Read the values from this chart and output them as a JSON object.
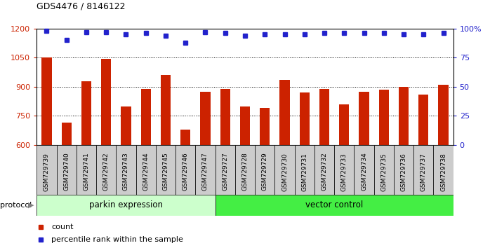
{
  "title": "GDS4476 / 8146122",
  "samples": [
    "GSM729739",
    "GSM729740",
    "GSM729741",
    "GSM729742",
    "GSM729743",
    "GSM729744",
    "GSM729745",
    "GSM729746",
    "GSM729747",
    "GSM729727",
    "GSM729728",
    "GSM729729",
    "GSM729730",
    "GSM729731",
    "GSM729732",
    "GSM729733",
    "GSM729734",
    "GSM729735",
    "GSM729736",
    "GSM729737",
    "GSM729738"
  ],
  "counts": [
    1050,
    715,
    930,
    1045,
    800,
    890,
    960,
    680,
    875,
    890,
    800,
    790,
    935,
    870,
    890,
    810,
    875,
    885,
    900,
    860,
    910
  ],
  "percentile_ranks": [
    98,
    90,
    97,
    97,
    95,
    96,
    94,
    88,
    97,
    96,
    94,
    95,
    95,
    95,
    96,
    96,
    96,
    96,
    95,
    95,
    96
  ],
  "bar_color": "#cc2200",
  "dot_color": "#2222cc",
  "ylim_left": [
    600,
    1200
  ],
  "ylim_right": [
    0,
    100
  ],
  "yticks_left": [
    600,
    750,
    900,
    1050,
    1200
  ],
  "yticks_right": [
    0,
    25,
    50,
    75,
    100
  ],
  "group1_label": "parkin expression",
  "group2_label": "vector control",
  "group1_count": 9,
  "group2_count": 12,
  "protocol_label": "protocol",
  "legend_count_label": "count",
  "legend_pct_label": "percentile rank within the sample",
  "group1_color": "#ccffcc",
  "group2_color": "#44ee44",
  "xtick_bg_color": "#cccccc",
  "fig_bg": "#ffffff"
}
